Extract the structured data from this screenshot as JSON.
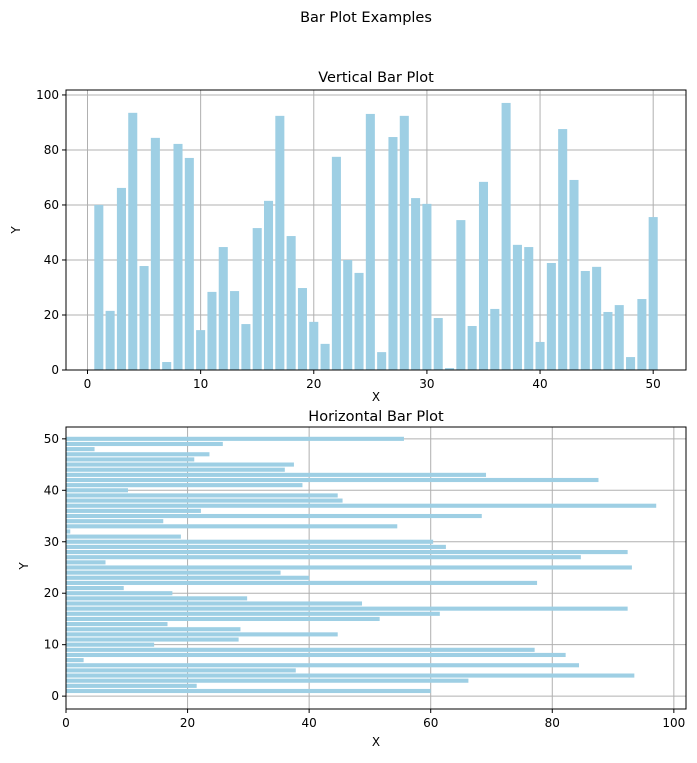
{
  "suptitle": "Bar Plot Examples",
  "bar_color": "#9ecfe4",
  "chart_data": [
    {
      "type": "bar",
      "orientation": "vertical",
      "title": "Vertical Bar Plot",
      "xlabel": "X",
      "ylabel": "Y",
      "xlim": [
        -1.9,
        52.9
      ],
      "ylim": [
        0,
        101.8
      ],
      "xticks": [
        0,
        10,
        20,
        30,
        40,
        50
      ],
      "yticks": [
        0,
        20,
        40,
        60,
        80,
        100
      ],
      "grid": true,
      "x": [
        1,
        2,
        3,
        4,
        5,
        6,
        7,
        8,
        9,
        10,
        11,
        12,
        13,
        14,
        15,
        16,
        17,
        18,
        19,
        20,
        21,
        22,
        23,
        24,
        25,
        26,
        27,
        28,
        29,
        30,
        31,
        32,
        33,
        34,
        35,
        36,
        37,
        38,
        39,
        40,
        41,
        42,
        43,
        44,
        45,
        46,
        47,
        48,
        49,
        50
      ],
      "values": [
        60.0,
        21.5,
        66.2,
        93.5,
        37.8,
        84.4,
        2.9,
        82.2,
        77.1,
        14.5,
        28.4,
        44.7,
        28.7,
        16.7,
        51.6,
        61.5,
        92.4,
        48.7,
        29.8,
        17.5,
        9.5,
        77.5,
        40.0,
        35.3,
        93.1,
        6.5,
        84.7,
        92.4,
        62.5,
        60.4,
        18.9,
        0.7,
        54.5,
        16.0,
        68.4,
        22.2,
        97.1,
        45.5,
        44.7,
        10.2,
        38.9,
        87.6,
        69.1,
        36.0,
        37.5,
        21.1,
        23.6,
        4.7,
        25.8,
        55.6
      ]
    },
    {
      "type": "bar",
      "orientation": "horizontal",
      "title": "Horizontal Bar Plot",
      "xlabel": "X",
      "ylabel": "Y",
      "xlim": [
        0,
        102
      ],
      "ylim": [
        -2.5,
        52.3
      ],
      "xticks": [
        0,
        20,
        40,
        60,
        80,
        100
      ],
      "yticks": [
        0,
        10,
        20,
        30,
        40,
        50
      ],
      "grid": true,
      "y": [
        1,
        2,
        3,
        4,
        5,
        6,
        7,
        8,
        9,
        10,
        11,
        12,
        13,
        14,
        15,
        16,
        17,
        18,
        19,
        20,
        21,
        22,
        23,
        24,
        25,
        26,
        27,
        28,
        29,
        30,
        31,
        32,
        33,
        34,
        35,
        36,
        37,
        38,
        39,
        40,
        41,
        42,
        43,
        44,
        45,
        46,
        47,
        48,
        49,
        50
      ],
      "values": [
        60.0,
        21.5,
        66.2,
        93.5,
        37.8,
        84.4,
        2.9,
        82.2,
        77.1,
        14.5,
        28.4,
        44.7,
        28.7,
        16.7,
        51.6,
        61.5,
        92.4,
        48.7,
        29.8,
        17.5,
        9.5,
        77.5,
        40.0,
        35.3,
        93.1,
        6.5,
        84.7,
        92.4,
        62.5,
        60.4,
        18.9,
        0.7,
        54.5,
        16.0,
        68.4,
        22.2,
        97.1,
        45.5,
        44.7,
        10.2,
        38.9,
        87.6,
        69.1,
        36.0,
        37.5,
        21.1,
        23.6,
        4.7,
        25.8,
        55.6
      ]
    }
  ]
}
